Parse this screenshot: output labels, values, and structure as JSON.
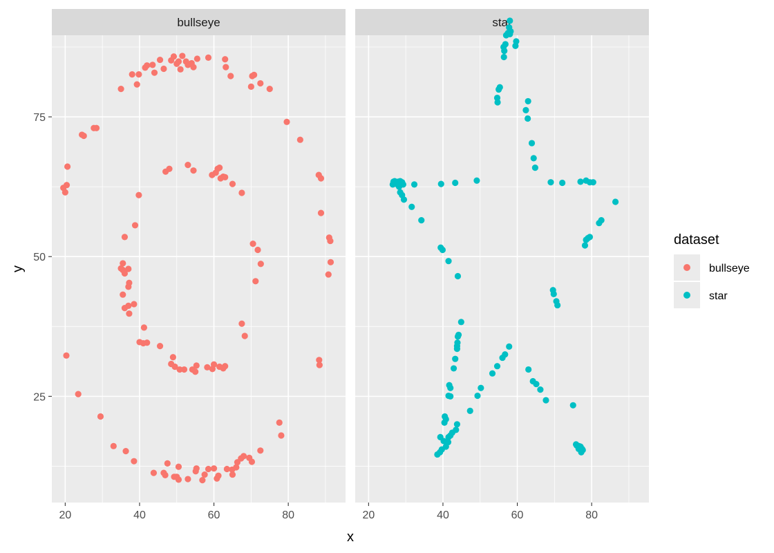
{
  "chart_data": {
    "type": "scatter",
    "xlabel": "x",
    "ylabel": "y",
    "xlim": [
      16.4,
      95.4
    ],
    "ylim": [
      6.0,
      89.6
    ],
    "x_ticks": [
      20,
      40,
      60,
      80
    ],
    "y_ticks": [
      25,
      50,
      75
    ],
    "grid": true,
    "legend": {
      "title": "dataset",
      "position": "right"
    },
    "panels": [
      {
        "strip": "bullseye",
        "color": "#F8766D",
        "points": [
          [
            19.5,
            62.3
          ],
          [
            20.0,
            61.5
          ],
          [
            20.4,
            62.8
          ],
          [
            20.6,
            66.1
          ],
          [
            20.3,
            32.3
          ],
          [
            23.5,
            25.4
          ],
          [
            24.5,
            71.8
          ],
          [
            25.0,
            71.6
          ],
          [
            27.7,
            73.0
          ],
          [
            28.4,
            73.0
          ],
          [
            29.5,
            21.4
          ],
          [
            33.0,
            16.1
          ],
          [
            35.0,
            80.0
          ],
          [
            36.3,
            15.2
          ],
          [
            38.0,
            82.6
          ],
          [
            38.5,
            13.4
          ],
          [
            39.3,
            80.8
          ],
          [
            39.8,
            82.6
          ],
          [
            41.5,
            83.8
          ],
          [
            42.0,
            84.2
          ],
          [
            43.5,
            84.3
          ],
          [
            44.0,
            82.9
          ],
          [
            45.5,
            85.2
          ],
          [
            46.5,
            83.6
          ],
          [
            48.5,
            85.1
          ],
          [
            49.2,
            85.8
          ],
          [
            50.0,
            84.5
          ],
          [
            50.5,
            84.9
          ],
          [
            51.0,
            83.5
          ],
          [
            51.5,
            85.9
          ],
          [
            52.5,
            84.9
          ],
          [
            53.0,
            84.3
          ],
          [
            54.0,
            84.6
          ],
          [
            54.5,
            83.9
          ],
          [
            55.5,
            85.4
          ],
          [
            58.5,
            85.6
          ],
          [
            63.0,
            85.3
          ],
          [
            63.2,
            83.9
          ],
          [
            64.5,
            82.3
          ],
          [
            70.0,
            80.4
          ],
          [
            70.3,
            82.3
          ],
          [
            70.8,
            82.5
          ],
          [
            72.5,
            81.0
          ],
          [
            75.0,
            80.0
          ],
          [
            79.6,
            74.1
          ],
          [
            83.2,
            70.9
          ],
          [
            88.2,
            64.6
          ],
          [
            88.8,
            64.0
          ],
          [
            88.8,
            57.8
          ],
          [
            91.0,
            53.4
          ],
          [
            91.3,
            52.8
          ],
          [
            91.4,
            49.0
          ],
          [
            90.8,
            46.8
          ],
          [
            88.3,
            31.5
          ],
          [
            88.4,
            30.6
          ],
          [
            77.6,
            20.3
          ],
          [
            78.1,
            18.0
          ],
          [
            72.5,
            15.3
          ],
          [
            70.2,
            13.3
          ],
          [
            69.5,
            14.0
          ],
          [
            68.0,
            14.3
          ],
          [
            67.3,
            13.9
          ],
          [
            66.3,
            13.2
          ],
          [
            66.0,
            12.3
          ],
          [
            65.0,
            11.0
          ],
          [
            64.9,
            11.9
          ],
          [
            63.5,
            12.0
          ],
          [
            61.2,
            10.8
          ],
          [
            60.8,
            10.3
          ],
          [
            60.0,
            12.1
          ],
          [
            58.5,
            12.0
          ],
          [
            57.5,
            11.0
          ],
          [
            56.9,
            10.0
          ],
          [
            55.3,
            12.1
          ],
          [
            55.1,
            11.6
          ],
          [
            53.0,
            10.2
          ],
          [
            50.5,
            12.4
          ],
          [
            50.5,
            10.1
          ],
          [
            50.0,
            10.6
          ],
          [
            49.3,
            10.6
          ],
          [
            47.5,
            13.0
          ],
          [
            46.9,
            10.9
          ],
          [
            46.5,
            11.3
          ],
          [
            43.8,
            11.3
          ],
          [
            47.0,
            65.2
          ],
          [
            48.0,
            65.7
          ],
          [
            53.0,
            66.4
          ],
          [
            54.5,
            65.4
          ],
          [
            59.5,
            64.6
          ],
          [
            60.5,
            65.0
          ],
          [
            61.0,
            65.7
          ],
          [
            61.5,
            65.9
          ],
          [
            61.8,
            64.0
          ],
          [
            62.5,
            64.3
          ],
          [
            63.0,
            64.2
          ],
          [
            65.0,
            63.0
          ],
          [
            67.5,
            61.4
          ],
          [
            70.5,
            52.3
          ],
          [
            71.8,
            51.2
          ],
          [
            72.6,
            48.7
          ],
          [
            71.2,
            45.6
          ],
          [
            67.5,
            38.0
          ],
          [
            68.3,
            35.8
          ],
          [
            63.0,
            30.4
          ],
          [
            62.5,
            30.0
          ],
          [
            61.5,
            30.3
          ],
          [
            60.0,
            30.7
          ],
          [
            59.6,
            29.9
          ],
          [
            58.2,
            30.2
          ],
          [
            55.3,
            30.5
          ],
          [
            55.0,
            29.4
          ],
          [
            54.2,
            29.8
          ],
          [
            52.0,
            29.8
          ],
          [
            50.8,
            29.8
          ],
          [
            49.5,
            30.3
          ],
          [
            48.5,
            30.8
          ],
          [
            49.0,
            32.0
          ],
          [
            45.5,
            34.0
          ],
          [
            42.0,
            34.6
          ],
          [
            41.0,
            34.5
          ],
          [
            40.0,
            34.7
          ],
          [
            41.2,
            37.3
          ],
          [
            38.5,
            41.5
          ],
          [
            37.2,
            39.8
          ],
          [
            37.0,
            41.2
          ],
          [
            36.0,
            40.8
          ],
          [
            35.5,
            43.2
          ],
          [
            37.0,
            44.6
          ],
          [
            37.2,
            45.3
          ],
          [
            37.0,
            47.8
          ],
          [
            36.0,
            47.0
          ],
          [
            35.5,
            47.6
          ],
          [
            35.0,
            47.9
          ],
          [
            35.5,
            48.8
          ],
          [
            36.0,
            53.5
          ],
          [
            38.8,
            55.6
          ],
          [
            39.8,
            61.0
          ]
        ]
      },
      {
        "strip": "star",
        "color": "#00BFC4",
        "points": [
          [
            58.0,
            92.2
          ],
          [
            57.8,
            91.0
          ],
          [
            58.2,
            90.3
          ],
          [
            57.5,
            90.0
          ],
          [
            57.0,
            89.6
          ],
          [
            58.0,
            89.8
          ],
          [
            59.7,
            88.5
          ],
          [
            59.5,
            87.7
          ],
          [
            56.8,
            88.0
          ],
          [
            56.3,
            87.5
          ],
          [
            56.5,
            86.8
          ],
          [
            56.4,
            85.7
          ],
          [
            55.3,
            80.3
          ],
          [
            55.0,
            79.9
          ],
          [
            54.6,
            78.4
          ],
          [
            54.7,
            77.6
          ],
          [
            62.9,
            77.8
          ],
          [
            62.3,
            76.2
          ],
          [
            62.8,
            74.7
          ],
          [
            63.9,
            70.3
          ],
          [
            64.4,
            67.6
          ],
          [
            64.8,
            65.9
          ],
          [
            26.7,
            63.4
          ],
          [
            27.0,
            63.5
          ],
          [
            27.5,
            63.0
          ],
          [
            28.0,
            63.4
          ],
          [
            28.5,
            63.5
          ],
          [
            29.0,
            63.3
          ],
          [
            29.3,
            62.9
          ],
          [
            28.2,
            62.5
          ],
          [
            26.5,
            62.9
          ],
          [
            28.5,
            61.5
          ],
          [
            29.0,
            61.0
          ],
          [
            29.5,
            60.2
          ],
          [
            32.3,
            62.9
          ],
          [
            31.6,
            58.9
          ],
          [
            34.2,
            56.5
          ],
          [
            39.5,
            63.0
          ],
          [
            43.3,
            63.2
          ],
          [
            49.1,
            63.6
          ],
          [
            69.0,
            63.3
          ],
          [
            72.1,
            63.2
          ],
          [
            77.0,
            63.4
          ],
          [
            78.5,
            63.6
          ],
          [
            79.5,
            63.3
          ],
          [
            80.4,
            63.3
          ],
          [
            86.4,
            59.8
          ],
          [
            82.6,
            56.5
          ],
          [
            82.0,
            56.0
          ],
          [
            79.5,
            53.5
          ],
          [
            79.0,
            53.3
          ],
          [
            78.5,
            53.0
          ],
          [
            78.2,
            52.0
          ],
          [
            69.6,
            44.0
          ],
          [
            69.8,
            43.3
          ],
          [
            70.5,
            42.0
          ],
          [
            70.8,
            41.3
          ],
          [
            39.4,
            51.6
          ],
          [
            39.9,
            51.2
          ],
          [
            41.5,
            49.2
          ],
          [
            44.0,
            46.5
          ],
          [
            44.9,
            38.3
          ],
          [
            44.2,
            36.0
          ],
          [
            44.0,
            35.7
          ],
          [
            43.9,
            34.6
          ],
          [
            43.8,
            34.0
          ],
          [
            43.8,
            33.5
          ],
          [
            43.3,
            31.7
          ],
          [
            42.9,
            30.0
          ],
          [
            57.8,
            33.9
          ],
          [
            56.7,
            32.5
          ],
          [
            56.0,
            31.9
          ],
          [
            54.6,
            30.4
          ],
          [
            53.3,
            29.1
          ],
          [
            50.2,
            26.5
          ],
          [
            49.3,
            25.1
          ],
          [
            47.3,
            22.4
          ],
          [
            41.7,
            27.0
          ],
          [
            42.0,
            26.5
          ],
          [
            41.5,
            25.1
          ],
          [
            42.0,
            25.0
          ],
          [
            40.5,
            21.4
          ],
          [
            40.4,
            20.3
          ],
          [
            40.8,
            20.9
          ],
          [
            43.8,
            20.0
          ],
          [
            43.5,
            19.0
          ],
          [
            42.5,
            18.5
          ],
          [
            42.0,
            18.0
          ],
          [
            41.5,
            17.7
          ],
          [
            41.4,
            16.8
          ],
          [
            40.8,
            16.0
          ],
          [
            39.7,
            15.5
          ],
          [
            39.2,
            15.0
          ],
          [
            38.5,
            14.6
          ],
          [
            39.3,
            17.7
          ],
          [
            40.2,
            17.0
          ],
          [
            63.0,
            29.8
          ],
          [
            64.2,
            27.7
          ],
          [
            65.1,
            27.2
          ],
          [
            66.2,
            26.2
          ],
          [
            67.7,
            24.3
          ],
          [
            75.0,
            23.4
          ],
          [
            75.8,
            16.4
          ],
          [
            76.0,
            16.2
          ],
          [
            76.6,
            16.1
          ],
          [
            77.0,
            16.0
          ],
          [
            77.4,
            15.6
          ],
          [
            77.6,
            15.4
          ],
          [
            77.2,
            15.0
          ],
          [
            76.5,
            15.6
          ]
        ]
      }
    ]
  }
}
